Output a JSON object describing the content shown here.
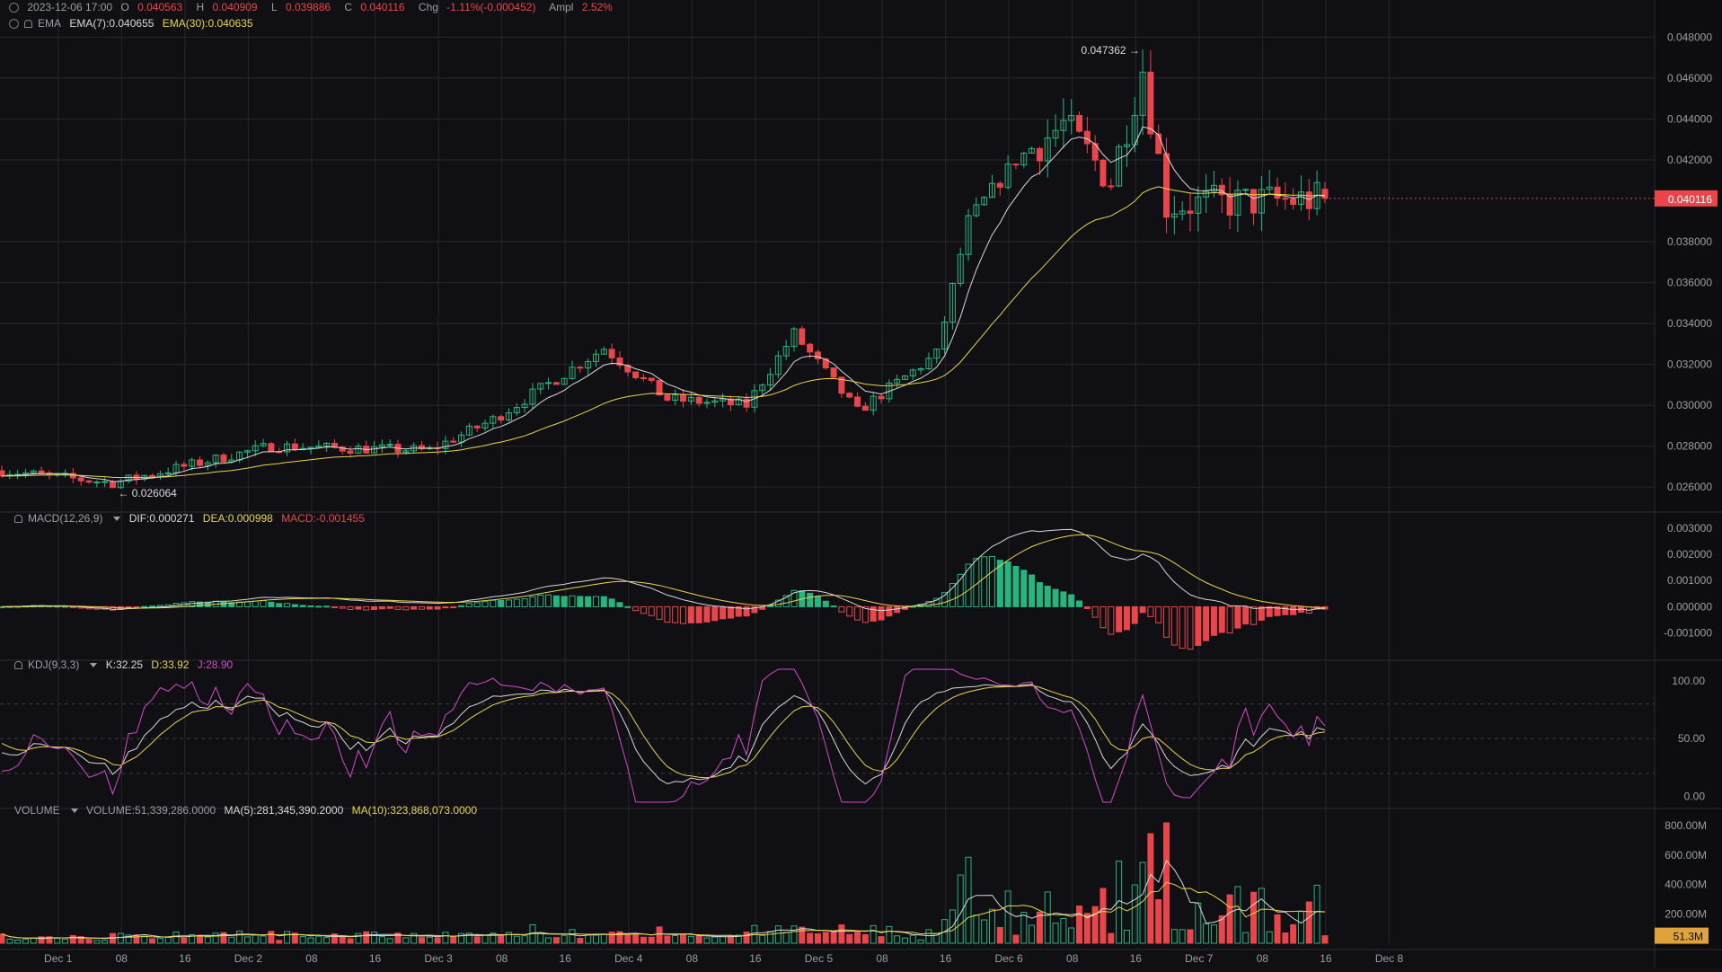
{
  "header": {
    "date": "2023-12-06 17:00",
    "open_label": "O",
    "open": "0.040563",
    "high_label": "H",
    "high": "0.040909",
    "low_label": "L",
    "low": "0.039886",
    "close_label": "C",
    "close": "0.040116",
    "chg_label": "Chg",
    "chg": "-1.11%(-0.000452)",
    "ampl_label": "Ampl",
    "ampl": "2.52%"
  },
  "ema_legend": {
    "name": "EMA",
    "ema7": "EMA(7):0.040655",
    "ema30": "EMA(30):0.040635"
  },
  "macd_legend": {
    "name": "MACD(12,26,9)",
    "dif": "DIF:0.000271",
    "dea": "DEA:0.000998",
    "macd": "MACD:-0.001455"
  },
  "kdj_legend": {
    "name": "KDJ(9,3,3)",
    "k": "K:32.25",
    "d": "D:33.92",
    "j": "J:28.90"
  },
  "volume_legend": {
    "name": "VOLUME",
    "vol": "VOLUME:51,339,286.0000",
    "ma5": "MA(5):281,345,390.2000",
    "ma10": "MA(10):323,868,073.0000"
  },
  "price_axis_labels": [
    "0.048000",
    "0.046000",
    "0.044000",
    "0.042000",
    "0.038000",
    "0.036000",
    "0.034000",
    "0.032000",
    "0.030000",
    "0.028000",
    "0.026000"
  ],
  "current_price_tag": "0.040116",
  "macd_axis_labels": [
    "0.003000",
    "0.002000",
    "0.001000",
    "0.000000",
    "-0.001000"
  ],
  "kdj_axis_labels": [
    "100.00",
    "50.00",
    "0.00"
  ],
  "volume_axis_labels": [
    "800.00M",
    "600.00M",
    "400.00M",
    "200.00M"
  ],
  "current_volume_tag": "51.3M",
  "time_axis_labels": [
    "Dec 1",
    "08",
    "16",
    "Dec 2",
    "08",
    "16",
    "Dec 3",
    "08",
    "16",
    "Dec 4",
    "08",
    "16",
    "Dec 5",
    "08",
    "16",
    "Dec 6",
    "08",
    "16",
    "Dec 7",
    "08",
    "16",
    "Dec 8"
  ],
  "max_annotation": "0.047362",
  "min_annotation": "0.026064",
  "colors": {
    "up": "#26b57f",
    "down": "#e8464a",
    "ema7": "#d8d8d8",
    "ema30": "#e8d44d",
    "k": "#d8d8d8",
    "d": "#e8d44d",
    "j": "#d64bcb",
    "background": "#101014",
    "grid": "#26262c"
  },
  "chart_data": {
    "type": "candlestick",
    "interval": "1h",
    "price_anchors": [
      {
        "date": "Nov 30 17:00",
        "price": 0.0268
      },
      {
        "date": "Dec 1 00:00",
        "price": 0.0262
      },
      {
        "date": "Dec 1 20:00",
        "price": 0.028
      },
      {
        "date": "Dec 2 16:00",
        "price": 0.0278
      },
      {
        "date": "Dec 3 00:00",
        "price": 0.0293
      },
      {
        "date": "Dec 3 14:00",
        "price": 0.0328
      },
      {
        "date": "Dec 3 22:00",
        "price": 0.0303
      },
      {
        "date": "Dec 4 08:00",
        "price": 0.03
      },
      {
        "date": "Dec 4 14:00",
        "price": 0.0335
      },
      {
        "date": "Dec 4 22:00",
        "price": 0.0297
      },
      {
        "date": "Dec 5 08:00",
        "price": 0.0325
      },
      {
        "date": "Dec 5 12:00",
        "price": 0.039
      },
      {
        "date": "Dec 5 18:00",
        "price": 0.042
      },
      {
        "date": "Dec 6 00:00",
        "price": 0.0437
      },
      {
        "date": "Dec 6 06:00",
        "price": 0.041
      },
      {
        "date": "Dec 6 10:00",
        "price": 0.0465
      },
      {
        "date": "Dec 6 13:00",
        "price": 0.0398
      },
      {
        "date": "Dec 6 17:00",
        "price": 0.0401
      }
    ],
    "high_max": 0.047362,
    "low_min": 0.026064,
    "last_candle": {
      "date": "2023-12-06 17:00",
      "open": 0.040563,
      "high": 0.040909,
      "low": 0.039886,
      "close": 0.040116
    },
    "ema7_last": 0.040655,
    "ema30_last": 0.040635,
    "macd_last": {
      "dif": 0.000271,
      "dea": 0.000998,
      "hist": -0.001455
    },
    "kdj_last": {
      "k": 32.25,
      "d": 33.92,
      "j": 28.9
    },
    "volume_last": 51339286,
    "volume_ma5_last": 281345390.2,
    "volume_ma10_last": 323868073.0,
    "price_ylim": [
      0.025,
      0.0485
    ],
    "macd_ylim": [
      -0.0018,
      0.0032
    ],
    "kdj_ylim": [
      -5,
      110
    ],
    "volume_ylim": [
      0,
      880000000
    ]
  }
}
